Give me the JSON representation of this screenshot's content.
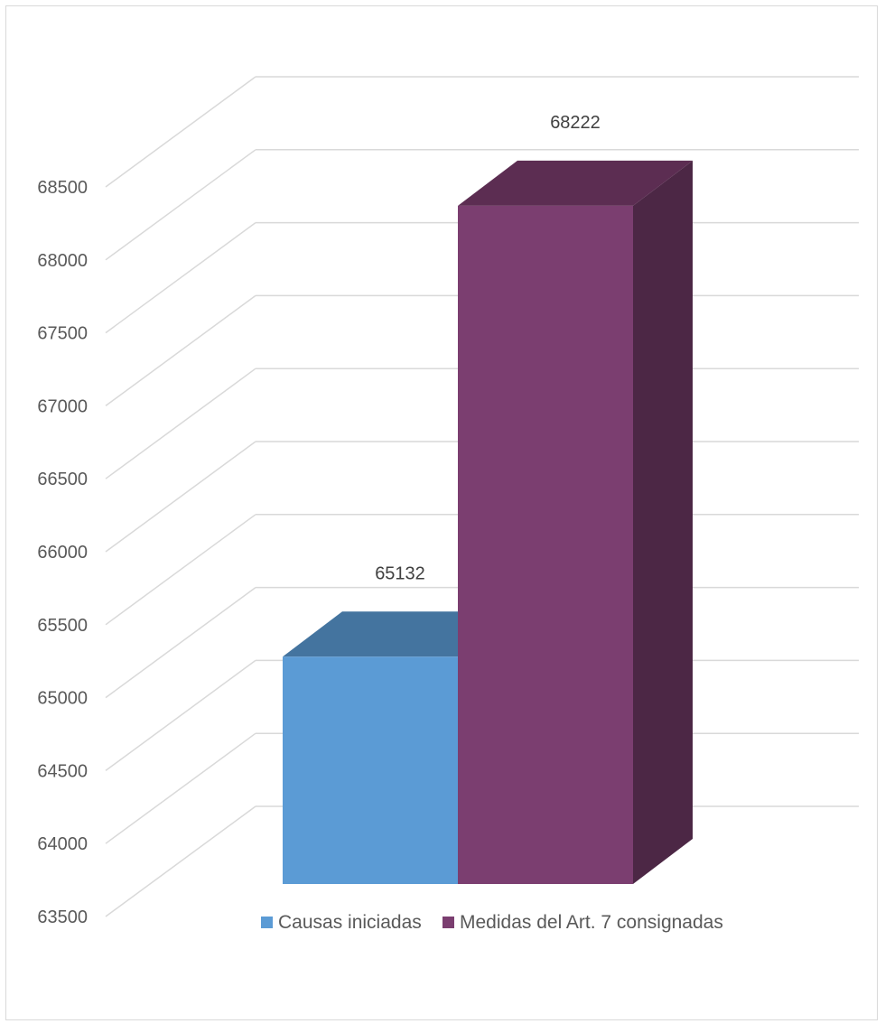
{
  "chart_data": {
    "type": "bar",
    "variant": "3d-column",
    "categories": [
      ""
    ],
    "series": [
      {
        "name": "Causas iniciadas",
        "values": [
          65132
        ],
        "color": "#5b9bd5",
        "top_color": "#44749f"
      },
      {
        "name": "Medidas del Art. 7 consignadas",
        "values": [
          68222
        ],
        "color": "#7b3e70",
        "side_color": "#4c2745",
        "top_color": "#5c2d52"
      }
    ],
    "ylim": [
      63500,
      68500
    ],
    "y_ticks": [
      "63500",
      "64000",
      "64500",
      "65000",
      "65500",
      "66000",
      "66500",
      "67000",
      "67500",
      "68000",
      "68500"
    ],
    "data_labels": [
      "65132",
      "68222"
    ],
    "grid": true,
    "legend": "bottom"
  }
}
